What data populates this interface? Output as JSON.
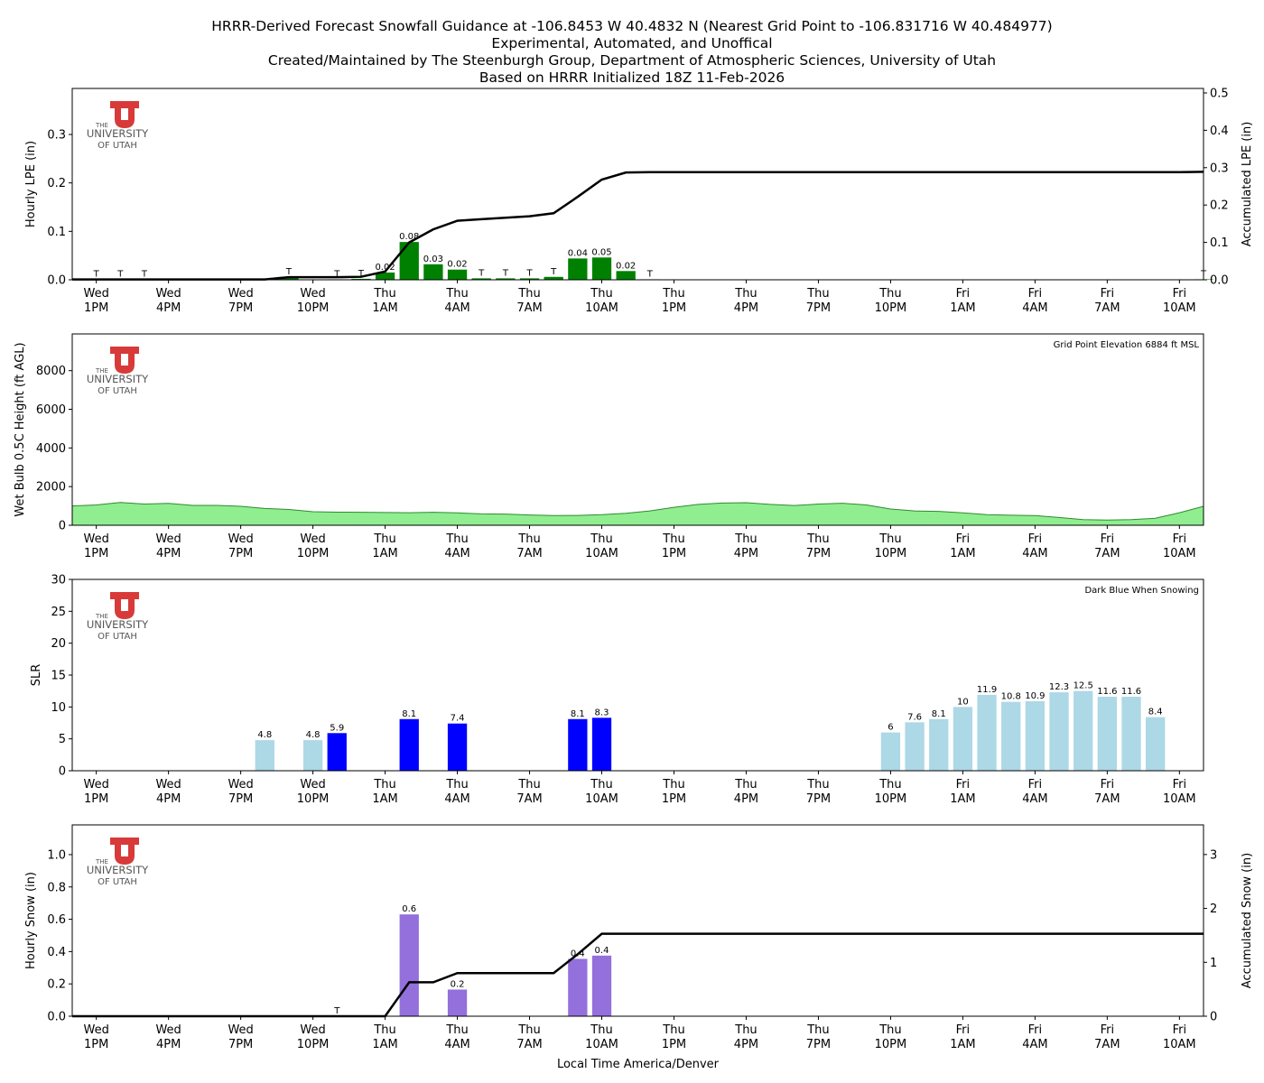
{
  "title_lines": [
    "HRRR-Derived Forecast Snowfall Guidance at -106.8453 W 40.4832 N (Nearest Grid Point to -106.831716 W 40.484977)",
    "Experimental, Automated, and Unoffical",
    "Created/Maintained by The Steenburgh Group, Department of Atmospheric Sciences, University of Utah",
    "Based on HRRR Initialized 18Z 11-Feb-2026"
  ],
  "logo": {
    "line1": "THE",
    "line2": "UNIVERSITY",
    "line3": "OF UTAH",
    "color": "#d83a3a"
  },
  "xlabel": "Local Time America/Denver",
  "x_ticks": [
    {
      "h": 1,
      "d": "Wed",
      "t": "1PM"
    },
    {
      "h": 4,
      "d": "Wed",
      "t": "4PM"
    },
    {
      "h": 7,
      "d": "Wed",
      "t": "7PM"
    },
    {
      "h": 10,
      "d": "Wed",
      "t": "10PM"
    },
    {
      "h": 13,
      "d": "Thu",
      "t": "1AM"
    },
    {
      "h": 16,
      "d": "Thu",
      "t": "4AM"
    },
    {
      "h": 19,
      "d": "Thu",
      "t": "7AM"
    },
    {
      "h": 22,
      "d": "Thu",
      "t": "10AM"
    },
    {
      "h": 25,
      "d": "Thu",
      "t": "1PM"
    },
    {
      "h": 28,
      "d": "Thu",
      "t": "4PM"
    },
    {
      "h": 31,
      "d": "Thu",
      "t": "7PM"
    },
    {
      "h": 34,
      "d": "Thu",
      "t": "10PM"
    },
    {
      "h": 37,
      "d": "Fri",
      "t": "1AM"
    },
    {
      "h": 40,
      "d": "Fri",
      "t": "4AM"
    },
    {
      "h": 43,
      "d": "Fri",
      "t": "7AM"
    },
    {
      "h": 46,
      "d": "Fri",
      "t": "10AM"
    }
  ],
  "chart_data": [
    {
      "type": "bar",
      "name": "lpe",
      "ylabel": "Hourly LPE (in)",
      "ylim": [
        0,
        0.395
      ],
      "yticks": [
        0.0,
        0.1,
        0.2,
        0.3
      ],
      "y2label": "Accumulated LPE (in)",
      "y2lim": [
        0,
        0.512
      ],
      "y2ticks": [
        0.0,
        0.1,
        0.2,
        0.3,
        0.4,
        0.5
      ],
      "bar_color": "#008000",
      "bars": [
        {
          "h": 1,
          "v": 0.001,
          "l": "T"
        },
        {
          "h": 2,
          "v": 0.001,
          "l": "T"
        },
        {
          "h": 3,
          "v": 0.001,
          "l": "T"
        },
        {
          "h": 9,
          "v": 0.006,
          "l": "T"
        },
        {
          "h": 11,
          "v": 0.001,
          "l": "T"
        },
        {
          "h": 12,
          "v": 0.002,
          "l": "T"
        },
        {
          "h": 13,
          "v": 0.015,
          "l": "0.02"
        },
        {
          "h": 14,
          "v": 0.078,
          "l": "0.08"
        },
        {
          "h": 15,
          "v": 0.032,
          "l": "0.03"
        },
        {
          "h": 16,
          "v": 0.021,
          "l": "0.02"
        },
        {
          "h": 17,
          "v": 0.003,
          "l": "T"
        },
        {
          "h": 18,
          "v": 0.003,
          "l": "T"
        },
        {
          "h": 19,
          "v": 0.003,
          "l": "T"
        },
        {
          "h": 20,
          "v": 0.006,
          "l": "T"
        },
        {
          "h": 21,
          "v": 0.044,
          "l": "0.04"
        },
        {
          "h": 22,
          "v": 0.046,
          "l": "0.05"
        },
        {
          "h": 23,
          "v": 0.018,
          "l": "0.02"
        },
        {
          "h": 24,
          "v": 0.001,
          "l": "T"
        },
        {
          "h": 47,
          "v": 0.001,
          "l": "T"
        }
      ],
      "accum": [
        0.001,
        0.001,
        0.001,
        0.001,
        0.001,
        0.001,
        0.001,
        0.001,
        0.001,
        0.007,
        0.007,
        0.007,
        0.008,
        0.022,
        0.1,
        0.135,
        0.158,
        0.162,
        0.166,
        0.17,
        0.178,
        0.222,
        0.268,
        0.287,
        0.288,
        0.288,
        0.288,
        0.288,
        0.288,
        0.288,
        0.288,
        0.288,
        0.288,
        0.288,
        0.288,
        0.288,
        0.288,
        0.288,
        0.288,
        0.288,
        0.288,
        0.288,
        0.288,
        0.288,
        0.288,
        0.288,
        0.288,
        0.289
      ]
    },
    {
      "type": "area",
      "name": "wetbulb",
      "ylabel": "Wet Bulb 0.5C Height (ft AGL)",
      "ylim": [
        0,
        9900
      ],
      "yticks": [
        0,
        2000,
        4000,
        6000,
        8000
      ],
      "color": "#90ee90",
      "note": "Grid Point Elevation 6884 ft MSL",
      "values": [
        1000,
        1050,
        1180,
        1100,
        1130,
        1030,
        1030,
        980,
        870,
        820,
        700,
        680,
        670,
        660,
        650,
        670,
        640,
        590,
        580,
        530,
        500,
        510,
        550,
        620,
        740,
        930,
        1080,
        1150,
        1170,
        1080,
        1020,
        1100,
        1140,
        1050,
        840,
        740,
        720,
        640,
        550,
        520,
        500,
        400,
        290,
        270,
        290,
        360,
        650,
        980
      ]
    },
    {
      "type": "bar",
      "name": "slr",
      "ylabel": "SLR",
      "ylim": [
        0,
        30
      ],
      "yticks": [
        0,
        5,
        10,
        15,
        20,
        25,
        30
      ],
      "note": "Dark Blue When Snowing",
      "snow_color": "#0000ff",
      "nosnow_color": "#add8e6",
      "bars": [
        {
          "h": 8,
          "v": 4.8,
          "s": false
        },
        {
          "h": 10,
          "v": 4.8,
          "s": false
        },
        {
          "h": 11,
          "v": 5.9,
          "s": true
        },
        {
          "h": 14,
          "v": 8.1,
          "s": true
        },
        {
          "h": 16,
          "v": 7.4,
          "s": true
        },
        {
          "h": 21,
          "v": 8.1,
          "s": true
        },
        {
          "h": 22,
          "v": 8.3,
          "s": true
        },
        {
          "h": 34,
          "v": 6.0,
          "s": false
        },
        {
          "h": 35,
          "v": 7.6,
          "s": false
        },
        {
          "h": 36,
          "v": 8.1,
          "s": false
        },
        {
          "h": 37,
          "v": 10.0,
          "s": false
        },
        {
          "h": 38,
          "v": 11.9,
          "s": false
        },
        {
          "h": 39,
          "v": 10.8,
          "s": false
        },
        {
          "h": 40,
          "v": 10.9,
          "s": false
        },
        {
          "h": 41,
          "v": 12.3,
          "s": false
        },
        {
          "h": 42,
          "v": 12.5,
          "s": false
        },
        {
          "h": 43,
          "v": 11.6,
          "s": false
        },
        {
          "h": 44,
          "v": 11.6,
          "s": false
        },
        {
          "h": 45,
          "v": 8.4,
          "s": false
        }
      ]
    },
    {
      "type": "bar",
      "name": "snow",
      "ylabel": "Hourly Snow (in)",
      "ylim": [
        0,
        1.184
      ],
      "yticks": [
        0.0,
        0.2,
        0.4,
        0.6,
        0.8,
        1.0
      ],
      "y2label": "Accumulated Snow (in)",
      "y2lim": [
        0,
        3.55
      ],
      "y2ticks": [
        0,
        1,
        2,
        3
      ],
      "bar_color": "#9370db",
      "bars": [
        {
          "h": 11,
          "v": 0.0,
          "l": "T"
        },
        {
          "h": 14,
          "v": 0.63,
          "l": "0.6"
        },
        {
          "h": 16,
          "v": 0.165,
          "l": "0.2"
        },
        {
          "h": 21,
          "v": 0.355,
          "l": "0.4"
        },
        {
          "h": 22,
          "v": 0.375,
          "l": "0.4"
        }
      ],
      "accum": [
        0,
        0,
        0,
        0,
        0,
        0,
        0,
        0,
        0,
        0,
        0,
        0,
        0,
        0,
        0.63,
        0.63,
        0.8,
        0.8,
        0.8,
        0.8,
        0.8,
        1.15,
        1.53,
        1.53,
        1.53,
        1.53,
        1.53,
        1.53,
        1.53,
        1.53,
        1.53,
        1.53,
        1.53,
        1.53,
        1.53,
        1.53,
        1.53,
        1.53,
        1.53,
        1.53,
        1.53,
        1.53,
        1.53,
        1.53,
        1.53,
        1.53,
        1.53,
        1.53
      ]
    }
  ]
}
